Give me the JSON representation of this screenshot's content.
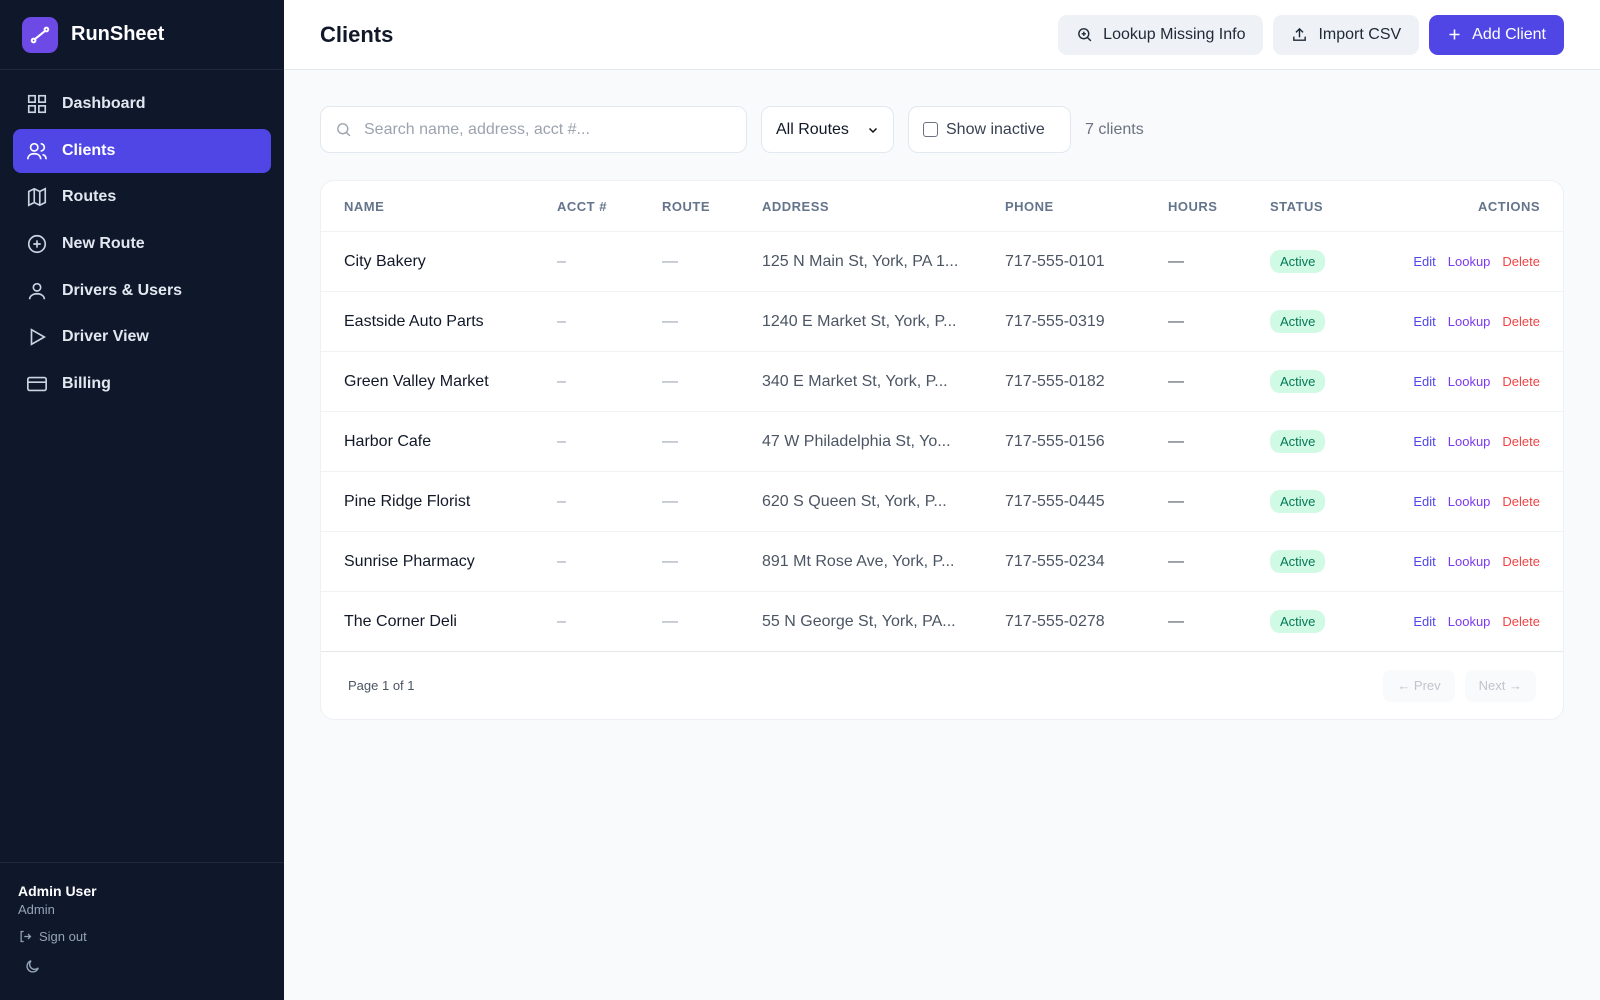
{
  "app": {
    "name": "RunSheet"
  },
  "nav": [
    "Dashboard",
    "Clients",
    "Routes",
    "New Route",
    "Drivers & Users",
    "Driver View",
    "Billing"
  ],
  "active_nav": 1,
  "user": {
    "name": "Admin User",
    "role": "Admin",
    "sign_out": "Sign out"
  },
  "header": {
    "title": "Clients",
    "buttons": [
      "Lookup Missing Info",
      "Import CSV",
      "Add Client"
    ]
  },
  "filters": {
    "search_placeholder": "Search name, address, acct #...",
    "route_select": "All Routes",
    "checkbox": "Show inactive",
    "count": "7 clients"
  },
  "table": {
    "columns": [
      "NAME",
      "ACCT #",
      "ROUTE",
      "ADDRESS",
      "PHONE",
      "HOURS",
      "STATUS",
      "ACTIONS"
    ],
    "rows": [
      [
        "City Bakery",
        "–",
        "—",
        "125 N Main St, York, PA 1...",
        "717-555-0101",
        "—",
        "Active"
      ],
      [
        "Eastside Auto Parts",
        "–",
        "—",
        "1240 E Market St, York, P...",
        "717-555-0319",
        "—",
        "Active"
      ],
      [
        "Green Valley Market",
        "–",
        "—",
        "340 E Market St, York, P...",
        "717-555-0182",
        "—",
        "Active"
      ],
      [
        "Harbor Cafe",
        "–",
        "—",
        "47 W Philadelphia St, Yo...",
        "717-555-0156",
        "—",
        "Active"
      ],
      [
        "Pine Ridge Florist",
        "–",
        "—",
        "620 S Queen St, York, P...",
        "717-555-0445",
        "—",
        "Active"
      ],
      [
        "Sunrise Pharmacy",
        "–",
        "—",
        "891 Mt Rose Ave, York, P...",
        "717-555-0234",
        "—",
        "Active"
      ],
      [
        "The Corner Deli",
        "–",
        "—",
        "55 N George St, York, PA...",
        "717-555-0278",
        "—",
        "Active"
      ]
    ],
    "actions": [
      "Edit",
      "Lookup",
      "Delete"
    ]
  },
  "pagination": {
    "label": "Page 1 of 1",
    "prev": "← Prev",
    "next": "Next →"
  }
}
